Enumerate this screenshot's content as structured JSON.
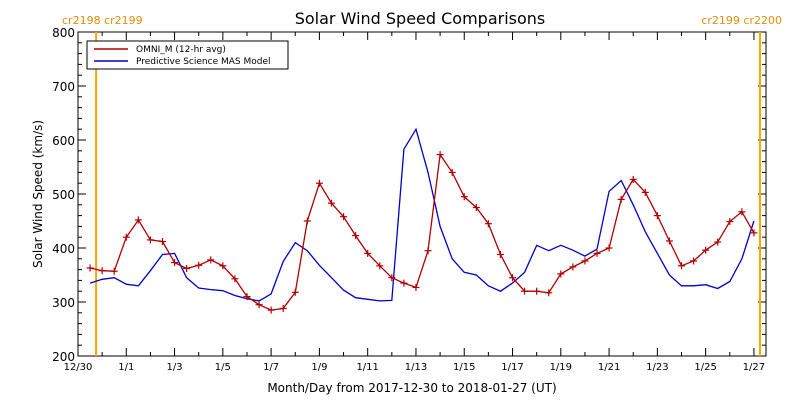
{
  "chart_data": {
    "type": "line",
    "title": "Solar Wind Speed Comparisons",
    "xlabel": "Month/Day from 2017-12-30 to 2018-01-27 (UT)",
    "ylabel": "Solar Wind Speed (km/s)",
    "ylim": [
      200,
      800
    ],
    "yticks": [
      200,
      300,
      400,
      500,
      600,
      700,
      800
    ],
    "xlim": [
      "2017-12-30",
      "2018-01-27"
    ],
    "xticks": [
      "12/30",
      "1/1",
      "1/3",
      "1/5",
      "1/7",
      "1/9",
      "1/11",
      "1/13",
      "1/15",
      "1/17",
      "1/19",
      "1/21",
      "1/23",
      "1/25",
      "1/27"
    ],
    "grid": false,
    "legend_position": "top-left",
    "carrington_markers": {
      "left": "cr2198 cr2199",
      "right": "cr2199 cr2200",
      "color": "#ffa500"
    },
    "series": [
      {
        "name": "OMNI_M (12-hr avg)",
        "color": "#b00000",
        "marker": "+",
        "x": [
          "12/30 12:00",
          "12/31 00:00",
          "12/31 12:00",
          "1/1 00:00",
          "1/1 12:00",
          "1/2 00:00",
          "1/2 12:00",
          "1/3 00:00",
          "1/3 12:00",
          "1/4 00:00",
          "1/4 12:00",
          "1/5 00:00",
          "1/5 12:00",
          "1/6 00:00",
          "1/6 12:00",
          "1/7 00:00",
          "1/7 12:00",
          "1/8 00:00",
          "1/8 12:00",
          "1/9 00:00",
          "1/9 12:00",
          "1/10 00:00",
          "1/10 12:00",
          "1/11 00:00",
          "1/11 12:00",
          "1/12 00:00",
          "1/12 12:00",
          "1/13 00:00",
          "1/13 12:00",
          "1/14 00:00",
          "1/14 12:00",
          "1/15 00:00",
          "1/15 12:00",
          "1/16 00:00",
          "1/16 12:00",
          "1/17 00:00",
          "1/17 12:00",
          "1/18 00:00",
          "1/18 12:00",
          "1/19 00:00",
          "1/19 12:00",
          "1/20 00:00",
          "1/20 12:00",
          "1/21 00:00",
          "1/21 12:00",
          "1/22 00:00",
          "1/22 12:00",
          "1/23 00:00",
          "1/23 12:00",
          "1/24 00:00",
          "1/24 12:00",
          "1/25 00:00",
          "1/25 12:00",
          "1/26 00:00",
          "1/26 12:00",
          "1/27 00:00"
        ],
        "values": [
          363,
          358,
          357,
          420,
          452,
          415,
          412,
          373,
          362,
          368,
          378,
          367,
          343,
          310,
          295,
          285,
          288,
          318,
          450,
          520,
          483,
          458,
          423,
          390,
          367,
          345,
          335,
          327,
          395,
          573,
          540,
          495,
          475,
          445,
          388,
          345,
          320,
          320,
          317,
          352,
          365,
          376,
          390,
          400,
          490,
          527,
          503,
          460,
          413,
          367,
          376,
          396,
          411,
          449,
          467,
          428
        ]
      },
      {
        "name": "Predictive Science MAS Model",
        "color": "#0000cc",
        "marker": "",
        "x": [
          "12/30 12:00",
          "12/31 00:00",
          "12/31 12:00",
          "1/1 00:00",
          "1/1 12:00",
          "1/2 00:00",
          "1/2 12:00",
          "1/3 00:00",
          "1/3 12:00",
          "1/4 00:00",
          "1/4 12:00",
          "1/5 00:00",
          "1/5 12:00",
          "1/6 00:00",
          "1/6 12:00",
          "1/7 00:00",
          "1/7 12:00",
          "1/8 00:00",
          "1/8 12:00",
          "1/9 00:00",
          "1/9 12:00",
          "1/10 00:00",
          "1/10 12:00",
          "1/11 00:00",
          "1/11 12:00",
          "1/12 00:00",
          "1/12 12:00",
          "1/13 00:00",
          "1/13 12:00",
          "1/14 00:00",
          "1/14 12:00",
          "1/15 00:00",
          "1/15 12:00",
          "1/16 00:00",
          "1/16 12:00",
          "1/17 00:00",
          "1/17 12:00",
          "1/18 00:00",
          "1/18 12:00",
          "1/19 00:00",
          "1/19 12:00",
          "1/20 00:00",
          "1/20 12:00",
          "1/21 00:00",
          "1/21 12:00",
          "1/22 00:00",
          "1/22 12:00",
          "1/23 00:00",
          "1/23 12:00",
          "1/24 00:00",
          "1/24 12:00",
          "1/25 00:00",
          "1/25 12:00",
          "1/26 00:00",
          "1/26 12:00",
          "1/27 00:00"
        ],
        "values": [
          335,
          342,
          345,
          333,
          330,
          358,
          388,
          390,
          345,
          326,
          323,
          321,
          312,
          306,
          302,
          315,
          375,
          410,
          395,
          368,
          345,
          322,
          308,
          305,
          302,
          303,
          583,
          620,
          540,
          440,
          380,
          355,
          350,
          330,
          320,
          335,
          355,
          405,
          395,
          405,
          396,
          385,
          398,
          505,
          525,
          480,
          430,
          390,
          350,
          330,
          330,
          332,
          325,
          338,
          380,
          450
        ]
      }
    ]
  }
}
